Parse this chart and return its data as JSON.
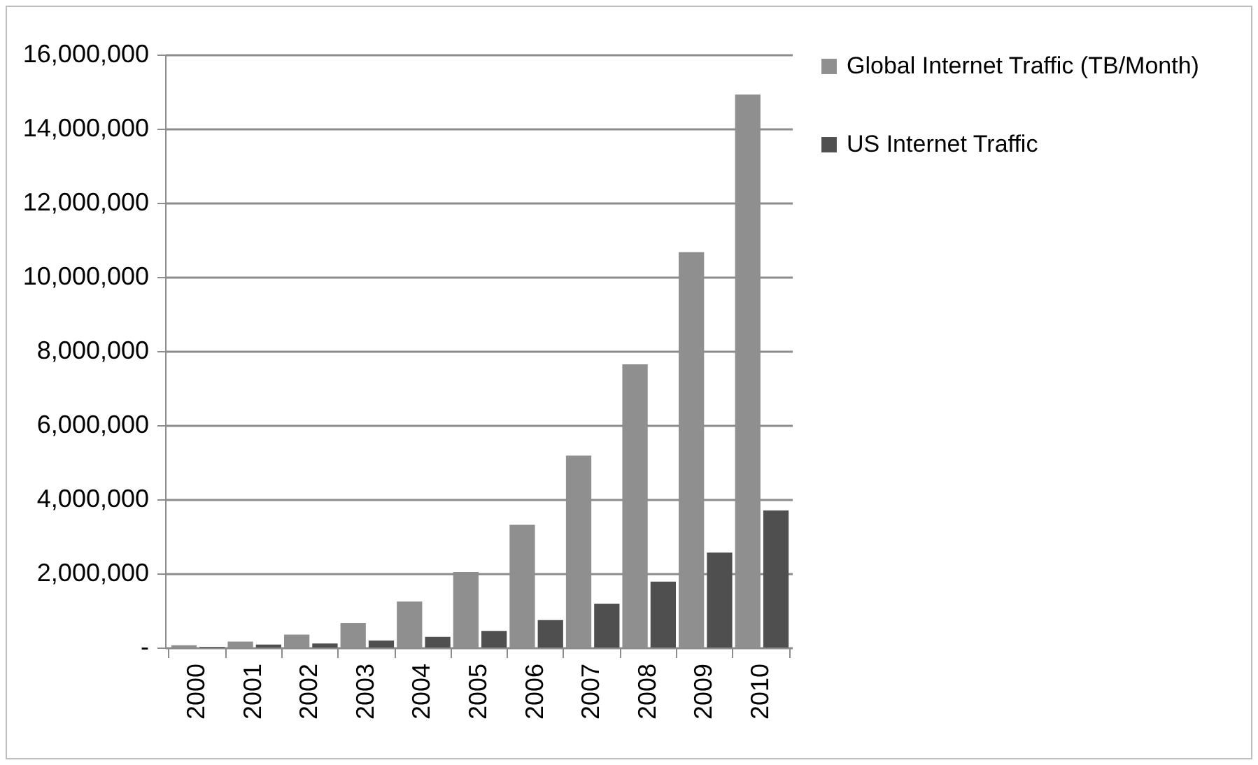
{
  "chart_data": {
    "type": "bar",
    "categories": [
      "2000",
      "2001",
      "2002",
      "2003",
      "2004",
      "2005",
      "2006",
      "2007",
      "2008",
      "2009",
      "2010"
    ],
    "series": [
      {
        "name": "Global Internet Traffic (TB/Month)",
        "color": "#8f8f8f",
        "values": [
          60000,
          160000,
          350000,
          660000,
          1240000,
          2040000,
          3310000,
          5180000,
          7640000,
          10670000,
          14920000
        ]
      },
      {
        "name": "US Internet Traffic",
        "color": "#4f4f4f",
        "values": [
          20000,
          80000,
          110000,
          190000,
          290000,
          450000,
          740000,
          1180000,
          1780000,
          2560000,
          3700000
        ]
      }
    ],
    "ylim": [
      0,
      16000000
    ],
    "yticks": [
      {
        "value": 0,
        "label": "-"
      },
      {
        "value": 2000000,
        "label": "2,000,000"
      },
      {
        "value": 4000000,
        "label": "4,000,000"
      },
      {
        "value": 6000000,
        "label": "6,000,000"
      },
      {
        "value": 8000000,
        "label": "8,000,000"
      },
      {
        "value": 10000000,
        "label": "10,000,000"
      },
      {
        "value": 12000000,
        "label": "12,000,000"
      },
      {
        "value": 14000000,
        "label": "14,000,000"
      },
      {
        "value": 16000000,
        "label": "16,000,000"
      }
    ],
    "grid": "y",
    "legend": "right"
  }
}
